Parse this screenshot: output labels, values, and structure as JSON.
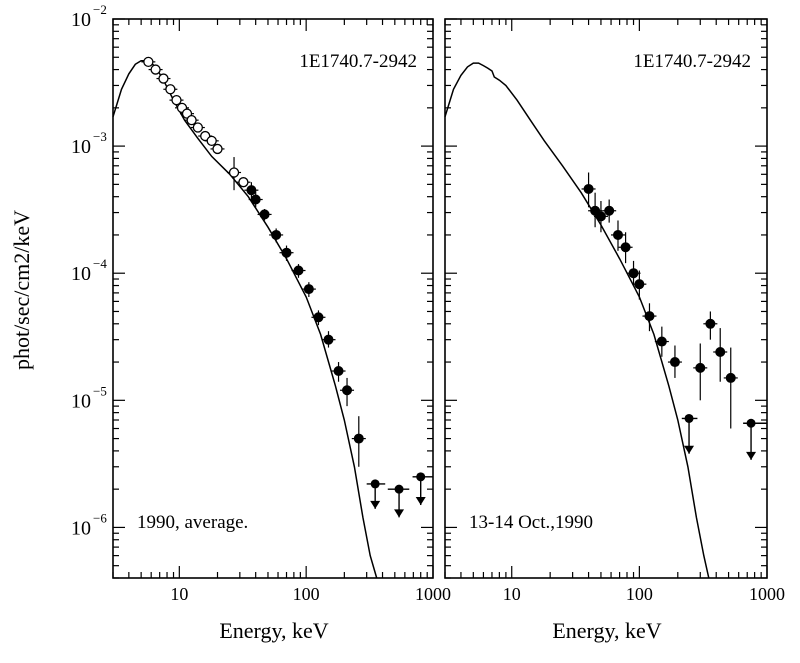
{
  "ylabel": "phot/sec/cm2/keV",
  "chart_data": [
    {
      "type": "scatter",
      "panel": "left",
      "source_label": "1E1740.7-2942",
      "annotation": "1990, average.",
      "xlabel": "Energy, keV",
      "ylabel": "phot/sec/cm2/keV",
      "x_scale": "log",
      "y_scale": "log",
      "xlim": [
        3,
        1000
      ],
      "ylim": [
        4e-07,
        0.01
      ],
      "x_ticklabels": [
        "10",
        "100",
        "1000"
      ],
      "y_ticklabels": [
        "10^-6",
        "10^-5",
        "10^-4",
        "10^-3",
        "10^-2"
      ],
      "model_curve": {
        "x": [
          3,
          3.5,
          4,
          4.5,
          5,
          5.7,
          6.5,
          7.5,
          9,
          11,
          14,
          18,
          25,
          35,
          50,
          70,
          100,
          130,
          170,
          200,
          240,
          280,
          320,
          360
        ],
        "y": [
          0.0017,
          0.0028,
          0.0037,
          0.0044,
          0.0047,
          0.0047,
          0.0042,
          0.0033,
          0.0023,
          0.0016,
          0.00115,
          0.00083,
          0.0006,
          0.0004,
          0.00023,
          0.00013,
          6.5e-05,
          3.3e-05,
          1.3e-05,
          7e-06,
          3e-06,
          1.2e-06,
          6e-07,
          4e-07
        ]
      },
      "series": [
        {
          "name": "",
          "marker": "open-circle",
          "points": [
            {
              "x": 5.7,
              "y": 0.0046
            },
            {
              "x": 6.5,
              "y": 0.004
            },
            {
              "x": 7.5,
              "y": 0.0034
            },
            {
              "x": 8.5,
              "y": 0.0028
            },
            {
              "x": 9.5,
              "y": 0.0023
            },
            {
              "x": 10.5,
              "y": 0.002
            },
            {
              "x": 11.5,
              "y": 0.0018
            },
            {
              "x": 12.5,
              "y": 0.0016
            },
            {
              "x": 14,
              "y": 0.0014
            },
            {
              "x": 16,
              "y": 0.0012
            },
            {
              "x": 18,
              "y": 0.0011
            },
            {
              "x": 20,
              "y": 0.00095
            },
            {
              "x": 27,
              "y": 0.00062,
              "yerr": [
                0.00045,
                0.00082
              ]
            },
            {
              "x": 32,
              "y": 0.00052
            }
          ]
        },
        {
          "name": "",
          "marker": "filled-circle",
          "points": [
            {
              "x": 37,
              "y": 0.00045,
              "yerr": [
                0.00039,
                0.00052
              ]
            },
            {
              "x": 40,
              "y": 0.00038,
              "yerr": [
                0.00033,
                0.00044
              ]
            },
            {
              "x": 47,
              "y": 0.00029,
              "yerr": [
                0.00026,
                0.00032
              ]
            },
            {
              "x": 58,
              "y": 0.0002,
              "yerr": [
                0.000175,
                0.000225
              ]
            },
            {
              "x": 70,
              "y": 0.000145,
              "yerr": [
                0.000125,
                0.000165
              ]
            },
            {
              "x": 87,
              "y": 0.000105,
              "yerr": [
                9.2e-05,
                0.000118
              ]
            },
            {
              "x": 105,
              "y": 7.5e-05,
              "yerr": [
                6.5e-05,
                8.5e-05
              ]
            },
            {
              "x": 125,
              "y": 4.5e-05,
              "yerr": [
                3.9e-05,
                5.1e-05
              ]
            },
            {
              "x": 150,
              "y": 3e-05,
              "yerr": [
                2.6e-05,
                3.5e-05
              ]
            },
            {
              "x": 180,
              "y": 1.7e-05,
              "yerr": [
                1.4e-05,
                2e-05
              ]
            },
            {
              "x": 210,
              "y": 1.2e-05,
              "yerr": [
                9e-06,
                1.5e-05
              ]
            },
            {
              "x": 260,
              "y": 5e-06,
              "yerr": [
                3e-06,
                7.5e-06
              ]
            }
          ]
        },
        {
          "name": "",
          "marker": "upper-limit",
          "points": [
            {
              "x": 350,
              "y": 2.2e-06,
              "xerr": [
                300,
                420
              ],
              "arrow_to": 1.4e-06
            },
            {
              "x": 540,
              "y": 2e-06,
              "xerr": [
                440,
                650
              ],
              "arrow_to": 1.2e-06
            },
            {
              "x": 800,
              "y": 2.5e-06,
              "xerr": [
                690,
                1000
              ],
              "arrow_to": 1.5e-06
            }
          ]
        }
      ]
    },
    {
      "type": "scatter",
      "panel": "right",
      "source_label": "1E1740.7-2942",
      "annotation": "13-14 Oct.,1990",
      "xlabel": "Energy, keV",
      "ylabel": "",
      "x_scale": "log",
      "y_scale": "log",
      "xlim": [
        3,
        1000
      ],
      "ylim": [
        4e-07,
        0.01
      ],
      "x_ticklabels": [
        "10",
        "100",
        "1000"
      ],
      "y_ticklabels": [],
      "model_curve": {
        "x": [
          3,
          3.5,
          4,
          4.5,
          5,
          5.5,
          6,
          6.5,
          7,
          7.3,
          8,
          9,
          11,
          14,
          18,
          25,
          35,
          50,
          70,
          100,
          130,
          170,
          200,
          240,
          280,
          320,
          350
        ],
        "y": [
          0.0017,
          0.0028,
          0.0036,
          0.0042,
          0.0045,
          0.0045,
          0.0043,
          0.0041,
          0.0039,
          0.0035,
          0.0033,
          0.003,
          0.0023,
          0.0016,
          0.0011,
          0.0007,
          0.00043,
          0.00024,
          0.00013,
          6.5e-05,
          3.3e-05,
          1.3e-05,
          7e-06,
          3e-06,
          1.2e-06,
          6e-07,
          4e-07
        ]
      },
      "series": [
        {
          "name": "",
          "marker": "filled-circle",
          "points": [
            {
              "x": 40,
              "y": 0.00046,
              "yerr": [
                0.00033,
                0.00062
              ]
            },
            {
              "x": 45,
              "y": 0.00031,
              "yerr": [
                0.00023,
                0.00043
              ]
            },
            {
              "x": 50,
              "y": 0.00028,
              "yerr": [
                0.00021,
                0.00037
              ]
            },
            {
              "x": 58,
              "y": 0.00031,
              "yerr": [
                0.00025,
                0.00038
              ]
            },
            {
              "x": 68,
              "y": 0.0002,
              "yerr": [
                0.00015,
                0.00026
              ]
            },
            {
              "x": 78,
              "y": 0.00016,
              "yerr": [
                0.00012,
                0.00021
              ]
            },
            {
              "x": 90,
              "y": 0.0001,
              "yerr": [
                8e-05,
                0.000125
              ]
            },
            {
              "x": 100,
              "y": 8.2e-05,
              "yerr": [
                6.2e-05,
                0.000105
              ]
            },
            {
              "x": 120,
              "y": 4.6e-05,
              "yerr": [
                3.5e-05,
                5.8e-05
              ]
            },
            {
              "x": 150,
              "y": 2.9e-05,
              "yerr": [
                2.2e-05,
                3.8e-05
              ]
            },
            {
              "x": 190,
              "y": 2e-05,
              "yerr": [
                1.5e-05,
                2.7e-05
              ]
            },
            {
              "x": 300,
              "y": 1.8e-05,
              "yerr": [
                1e-05,
                2.8e-05
              ]
            },
            {
              "x": 360,
              "y": 4e-05,
              "yerr": [
                3e-05,
                5e-05
              ]
            },
            {
              "x": 430,
              "y": 2.4e-05,
              "yerr": [
                1.4e-05,
                3.7e-05
              ]
            },
            {
              "x": 520,
              "y": 1.5e-05,
              "yerr": [
                6e-06,
                2.6e-05
              ]
            }
          ]
        },
        {
          "name": "",
          "marker": "upper-limit",
          "points": [
            {
              "x": 245,
              "y": 7.2e-06,
              "xerr": [
                215,
                285
              ],
              "arrow_to": 3.8e-06
            },
            {
              "x": 750,
              "y": 6.6e-06,
              "xerr": [
                650,
                1000
              ],
              "arrow_to": 3.4e-06
            }
          ]
        }
      ]
    }
  ]
}
